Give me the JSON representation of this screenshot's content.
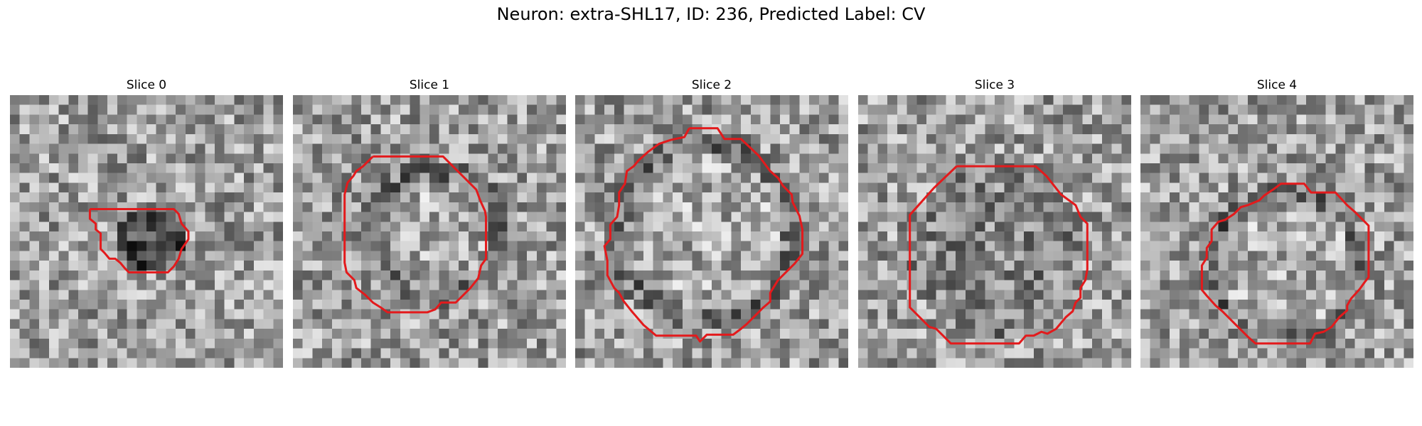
{
  "figure": {
    "title": "Neuron: extra-SHL17, ID: 236, Predicted Label: CV"
  },
  "grid_size": 28,
  "contour_color": "#e31a1c",
  "colormap": "gray",
  "panels": [
    {
      "title": "Slice 0",
      "contour": [
        [
          8.2,
          11.7
        ],
        [
          16.8,
          11.7
        ],
        [
          17.3,
          12.2
        ],
        [
          17.6,
          13.2
        ],
        [
          18.3,
          14.0
        ],
        [
          18.3,
          14.8
        ],
        [
          17.6,
          15.8
        ],
        [
          17.3,
          16.8
        ],
        [
          16.8,
          17.6
        ],
        [
          16.2,
          18.2
        ],
        [
          12.2,
          18.2
        ],
        [
          11.8,
          17.8
        ],
        [
          11.3,
          17.2
        ],
        [
          10.8,
          16.8
        ],
        [
          10.2,
          16.8
        ],
        [
          9.7,
          16.2
        ],
        [
          9.3,
          15.8
        ],
        [
          9.3,
          14.2
        ],
        [
          8.8,
          13.8
        ],
        [
          8.8,
          13.2
        ],
        [
          8.2,
          12.7
        ],
        [
          8.2,
          11.7
        ]
      ]
    },
    {
      "title": "Slice 1",
      "contour": [
        [
          8.2,
          6.3
        ],
        [
          15.4,
          6.3
        ],
        [
          16.1,
          7.0
        ],
        [
          18.8,
          9.7
        ],
        [
          19.2,
          10.8
        ],
        [
          19.7,
          11.9
        ],
        [
          19.8,
          12.5
        ],
        [
          19.8,
          16.8
        ],
        [
          19.3,
          17.5
        ],
        [
          19.0,
          18.8
        ],
        [
          18.2,
          19.8
        ],
        [
          17.4,
          20.6
        ],
        [
          16.7,
          21.3
        ],
        [
          15.2,
          21.3
        ],
        [
          14.6,
          22.0
        ],
        [
          13.8,
          22.3
        ],
        [
          9.7,
          22.3
        ],
        [
          9.0,
          21.8
        ],
        [
          8.2,
          21.3
        ],
        [
          7.4,
          20.5
        ],
        [
          6.5,
          19.8
        ],
        [
          6.3,
          19.0
        ],
        [
          5.5,
          18.2
        ],
        [
          5.3,
          17.2
        ],
        [
          5.3,
          10.2
        ],
        [
          5.6,
          9.0
        ],
        [
          6.2,
          8.3
        ],
        [
          6.5,
          7.8
        ],
        [
          7.2,
          7.3
        ],
        [
          8.2,
          6.3
        ]
      ]
    },
    {
      "title": "Slice 2",
      "contour": [
        [
          11.7,
          3.4
        ],
        [
          14.6,
          3.4
        ],
        [
          15.3,
          4.5
        ],
        [
          17.0,
          4.5
        ],
        [
          18.8,
          6.2
        ],
        [
          20.0,
          7.8
        ],
        [
          20.8,
          8.5
        ],
        [
          21.3,
          9.3
        ],
        [
          22.2,
          10.2
        ],
        [
          22.3,
          11.0
        ],
        [
          23.0,
          12.4
        ],
        [
          23.3,
          13.8
        ],
        [
          23.3,
          16.3
        ],
        [
          22.5,
          17.3
        ],
        [
          20.8,
          19.0
        ],
        [
          20.0,
          20.3
        ],
        [
          20.0,
          21.2
        ],
        [
          19.3,
          21.8
        ],
        [
          18.4,
          22.7
        ],
        [
          17.6,
          23.5
        ],
        [
          17.0,
          24.0
        ],
        [
          16.2,
          24.6
        ],
        [
          13.5,
          24.6
        ],
        [
          12.8,
          25.3
        ],
        [
          12.4,
          24.7
        ],
        [
          11.7,
          24.7
        ],
        [
          8.3,
          24.7
        ],
        [
          7.0,
          23.6
        ],
        [
          5.8,
          22.2
        ],
        [
          5.0,
          21.2
        ],
        [
          4.5,
          20.3
        ],
        [
          4.0,
          19.8
        ],
        [
          3.3,
          18.5
        ],
        [
          3.3,
          17.0
        ],
        [
          3.0,
          15.5
        ],
        [
          3.6,
          14.8
        ],
        [
          3.6,
          13.3
        ],
        [
          4.3,
          12.5
        ],
        [
          4.5,
          11.3
        ],
        [
          4.5,
          10.0
        ],
        [
          5.1,
          9.1
        ],
        [
          5.3,
          7.8
        ],
        [
          6.0,
          7.3
        ],
        [
          6.5,
          6.7
        ],
        [
          7.5,
          5.8
        ],
        [
          8.6,
          5.0
        ],
        [
          9.8,
          4.6
        ],
        [
          11.2,
          4.3
        ],
        [
          11.7,
          3.4
        ]
      ]
    },
    {
      "title": "Slice 3",
      "contour": [
        [
          10.1,
          7.3
        ],
        [
          18.2,
          7.3
        ],
        [
          19.3,
          8.3
        ],
        [
          20.8,
          10.2
        ],
        [
          22.3,
          11.3
        ],
        [
          22.8,
          12.5
        ],
        [
          23.5,
          13.2
        ],
        [
          23.5,
          17.9
        ],
        [
          23.3,
          19.0
        ],
        [
          22.8,
          19.8
        ],
        [
          22.8,
          20.8
        ],
        [
          22.3,
          21.3
        ],
        [
          22.0,
          22.2
        ],
        [
          21.3,
          22.8
        ],
        [
          20.3,
          24.0
        ],
        [
          19.4,
          24.5
        ],
        [
          18.8,
          24.3
        ],
        [
          18.0,
          24.7
        ],
        [
          17.2,
          24.7
        ],
        [
          16.5,
          25.5
        ],
        [
          9.5,
          25.5
        ],
        [
          8.7,
          24.7
        ],
        [
          8.0,
          24.0
        ],
        [
          7.3,
          23.8
        ],
        [
          6.5,
          23.0
        ],
        [
          5.3,
          21.8
        ],
        [
          5.3,
          12.3
        ],
        [
          7.8,
          9.5
        ],
        [
          10.1,
          7.3
        ]
      ]
    },
    {
      "title": "Slice 4",
      "contour": [
        [
          15.7,
          9.1
        ],
        [
          16.8,
          9.1
        ],
        [
          17.5,
          10.0
        ],
        [
          18.2,
          10.0
        ],
        [
          20.0,
          10.0
        ],
        [
          21.2,
          11.3
        ],
        [
          22.0,
          12.0
        ],
        [
          23.4,
          13.4
        ],
        [
          23.4,
          18.7
        ],
        [
          23.0,
          19.2
        ],
        [
          22.5,
          19.9
        ],
        [
          21.6,
          20.9
        ],
        [
          21.2,
          21.6
        ],
        [
          21.2,
          22.1
        ],
        [
          20.4,
          22.8
        ],
        [
          19.6,
          23.8
        ],
        [
          18.8,
          24.3
        ],
        [
          17.9,
          24.5
        ],
        [
          17.4,
          25.5
        ],
        [
          11.8,
          25.5
        ],
        [
          11.0,
          24.8
        ],
        [
          9.7,
          23.5
        ],
        [
          8.4,
          22.2
        ],
        [
          7.7,
          21.6
        ],
        [
          6.8,
          20.6
        ],
        [
          6.3,
          20.0
        ],
        [
          6.3,
          17.5
        ],
        [
          6.8,
          16.7
        ],
        [
          6.8,
          15.7
        ],
        [
          7.3,
          15.0
        ],
        [
          7.3,
          13.8
        ],
        [
          8.0,
          13.0
        ],
        [
          8.7,
          12.8
        ],
        [
          9.6,
          12.2
        ],
        [
          10.3,
          11.5
        ],
        [
          11.0,
          11.3
        ],
        [
          12.2,
          10.8
        ],
        [
          12.7,
          10.3
        ],
        [
          13.6,
          9.7
        ],
        [
          14.4,
          9.1
        ],
        [
          15.7,
          9.1
        ]
      ]
    }
  ]
}
